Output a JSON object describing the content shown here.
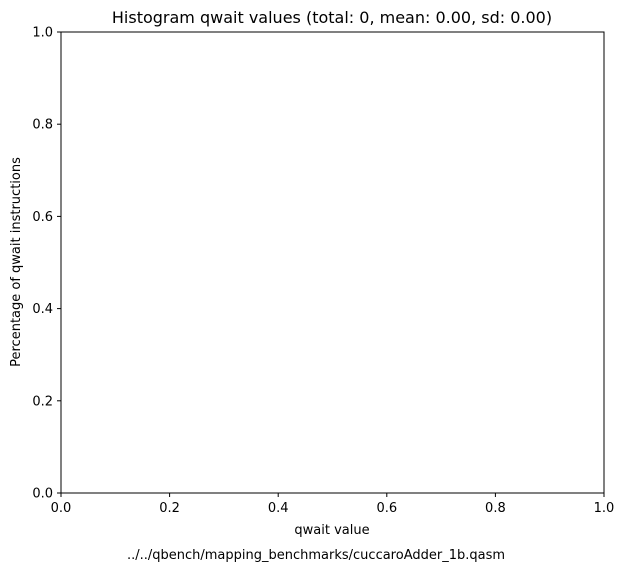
{
  "chart_data": {
    "type": "bar",
    "title": "Histogram qwait values (total: 0, mean: 0.00, sd: 0.00)",
    "xlabel": "qwait value",
    "ylabel": "Percentage of qwait instructions",
    "caption": "../../qbench/mapping_benchmarks/cuccaroAdder_1b.qasm",
    "xlim": [
      0.0,
      1.0
    ],
    "ylim": [
      0.0,
      1.0
    ],
    "xticks": [
      "0.0",
      "0.2",
      "0.4",
      "0.6",
      "0.8",
      "1.0"
    ],
    "yticks": [
      "0.0",
      "0.2",
      "0.4",
      "0.6",
      "0.8",
      "1.0"
    ],
    "categories": [],
    "values": [],
    "grid": false
  }
}
